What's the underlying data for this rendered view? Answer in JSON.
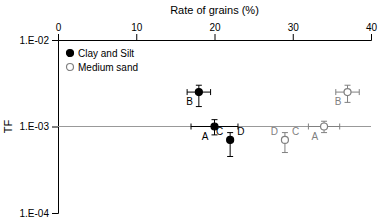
{
  "chart_data": {
    "type": "scatter",
    "xlabel": "Rate of grains (%)",
    "ylabel": "TF",
    "log": "y",
    "xlim": [
      0,
      40
    ],
    "xticks": [
      0,
      10,
      20,
      30,
      40
    ],
    "ylim": [
      0.0001,
      0.01
    ],
    "yticks": [
      {
        "value": 0.0001,
        "label": "1.E-04"
      },
      {
        "value": 0.001,
        "label": "1.E-03"
      },
      {
        "value": 0.01,
        "label": "1.E-02"
      }
    ],
    "grid": false,
    "legend": "upper-left",
    "hline_y": 0.001,
    "series": [
      {
        "name": "Clay and Silt",
        "color": "#000000",
        "marker": "circle",
        "x": [
          18.0,
          20.0,
          22.0
        ],
        "values": [
          0.0025,
          0.001,
          0.0007
        ],
        "x_err": [
          1.5,
          3.0,
          0.0
        ],
        "y_err_low": [
          0.0008,
          0.0002,
          0.00025
        ],
        "y_err_high": [
          0.0005,
          0.0002,
          0.00015
        ],
        "point_labels": [
          [
            "B"
          ],
          [
            "A"
          ],
          [
            "C",
            "D"
          ]
        ]
      },
      {
        "name": "Medium sand",
        "color": "#808080",
        "marker": "open-circle",
        "x": [
          37.0,
          34.0,
          29.0
        ],
        "values": [
          0.0025,
          0.001,
          0.0007
        ],
        "x_err": [
          1.5,
          2.0,
          0.0
        ],
        "y_err_low": [
          0.0006,
          0.00015,
          0.0002
        ],
        "y_err_high": [
          0.0005,
          0.00015,
          0.00015
        ],
        "point_labels": [
          [
            "B"
          ],
          [
            "A"
          ],
          [
            "D",
            "C"
          ]
        ]
      }
    ]
  }
}
